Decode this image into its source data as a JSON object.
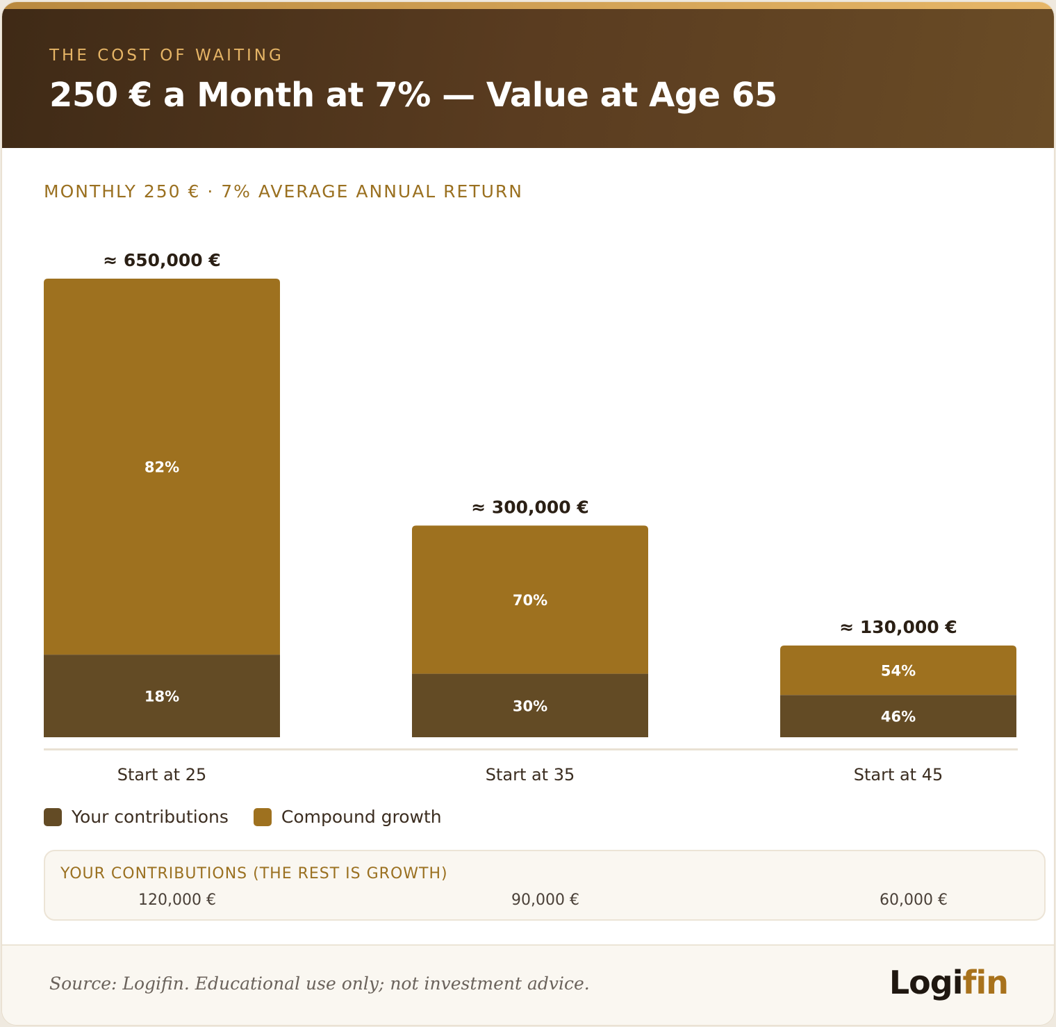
{
  "header": {
    "kicker": "THE COST OF WAITING",
    "title": "250 € a Month at 7% — Value at Age 65"
  },
  "colors": {
    "contributions": "#634b25",
    "growth": "#9e711f",
    "accent": "#9a7020"
  },
  "chart_data": {
    "type": "bar",
    "stacked": true,
    "title": "250 € a Month at 7% — Value at Age 65",
    "subtitle": "MONTHLY 250 € · 7% AVERAGE ANNUAL RETURN",
    "categories": [
      "Start at 25",
      "Start at 35",
      "Start at 45"
    ],
    "totals": [
      650000,
      300000,
      130000
    ],
    "total_labels": [
      "≈ 650,000 €",
      "≈ 300,000 €",
      "≈ 130,000 €"
    ],
    "series": [
      {
        "name": "Your contributions",
        "percent": [
          18,
          30,
          46
        ],
        "percent_labels": [
          "18%",
          "30%",
          "46%"
        ]
      },
      {
        "name": "Compound growth",
        "percent": [
          82,
          70,
          54
        ],
        "percent_labels": [
          "82%",
          "70%",
          "54%"
        ]
      }
    ],
    "ylim": [
      0,
      650000
    ],
    "grid": false,
    "legend": "bottom-left"
  },
  "contributions_box": {
    "title": "YOUR CONTRIBUTIONS (THE REST IS GROWTH)",
    "values": [
      "120,000 €",
      "90,000 €",
      "60,000 €"
    ]
  },
  "footer": {
    "source": "Source: Logifin. Educational use only; not investment advice.",
    "logo_part1": "Logi",
    "logo_part2": "fin"
  }
}
